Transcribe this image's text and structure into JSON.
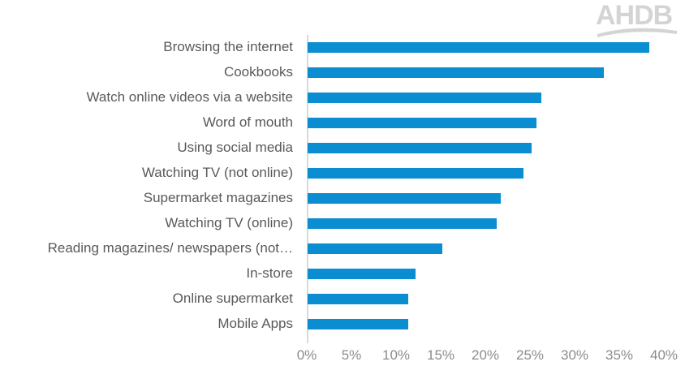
{
  "logo": {
    "text": "AHDB",
    "color": "#d4d4d4"
  },
  "chart_data": {
    "type": "bar",
    "orientation": "horizontal",
    "title": "",
    "xlabel": "",
    "ylabel": "",
    "categories": [
      "Browsing the internet",
      "Cookbooks",
      "Watch online videos via a website",
      "Word of mouth",
      "Using social media",
      "Watching TV (not online)",
      "Supermarket magazines",
      "Watching TV (online)",
      "Reading magazines/ newspapers (not…",
      "In-store",
      "Online supermarket",
      "Mobile Apps"
    ],
    "values": [
      38.3,
      33.2,
      26.2,
      25.6,
      25.1,
      24.2,
      21.6,
      21.2,
      15.1,
      12.1,
      11.3,
      11.3
    ],
    "unit": "%",
    "xlim": [
      0,
      40
    ],
    "x_ticks": [
      "0%",
      "5%",
      "10%",
      "15%",
      "20%",
      "25%",
      "30%",
      "35%",
      "40%"
    ],
    "grid": false,
    "legend": null,
    "bar_color": "#0a8ed1"
  }
}
